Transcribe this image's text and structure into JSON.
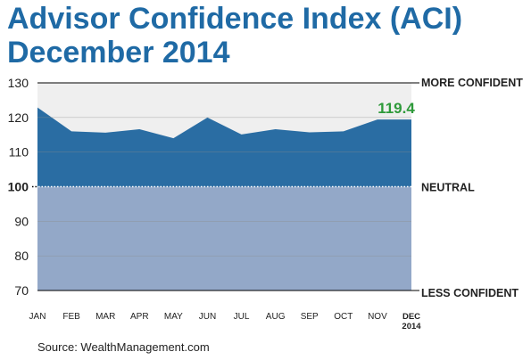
{
  "title_line1": "Advisor Confidence Index (ACI)",
  "title_line2": "December 2014",
  "source": "Source: WealthManagement.com",
  "colors": {
    "title": "#1f6aa5",
    "area_upper": "#2a6da3",
    "area_lower": "#93a8c8",
    "plot_background": "#efefef",
    "highlight_value": "#2e9a3a",
    "text": "#222222",
    "neutral_line": "#ffffff"
  },
  "chart_data": {
    "type": "area",
    "categories": [
      "JAN",
      "FEB",
      "MAR",
      "APR",
      "MAY",
      "JUN",
      "JUL",
      "AUG",
      "SEP",
      "OCT",
      "NOV",
      "DEC"
    ],
    "category_sublabel_last": "2014",
    "values": [
      122.9,
      116.0,
      115.6,
      116.6,
      114.0,
      120.0,
      115.1,
      116.6,
      115.7,
      116.0,
      119.4,
      119.4
    ],
    "ylim": [
      70,
      130
    ],
    "y_ticks": [
      70,
      80,
      90,
      100,
      110,
      120,
      130
    ],
    "baseline": 100,
    "right_labels": {
      "top": "MORE CONFIDENT",
      "middle": "NEUTRAL",
      "bottom": "LESS CONFIDENT"
    },
    "highlight_label": "119.4",
    "grid": true,
    "legend": "none"
  }
}
